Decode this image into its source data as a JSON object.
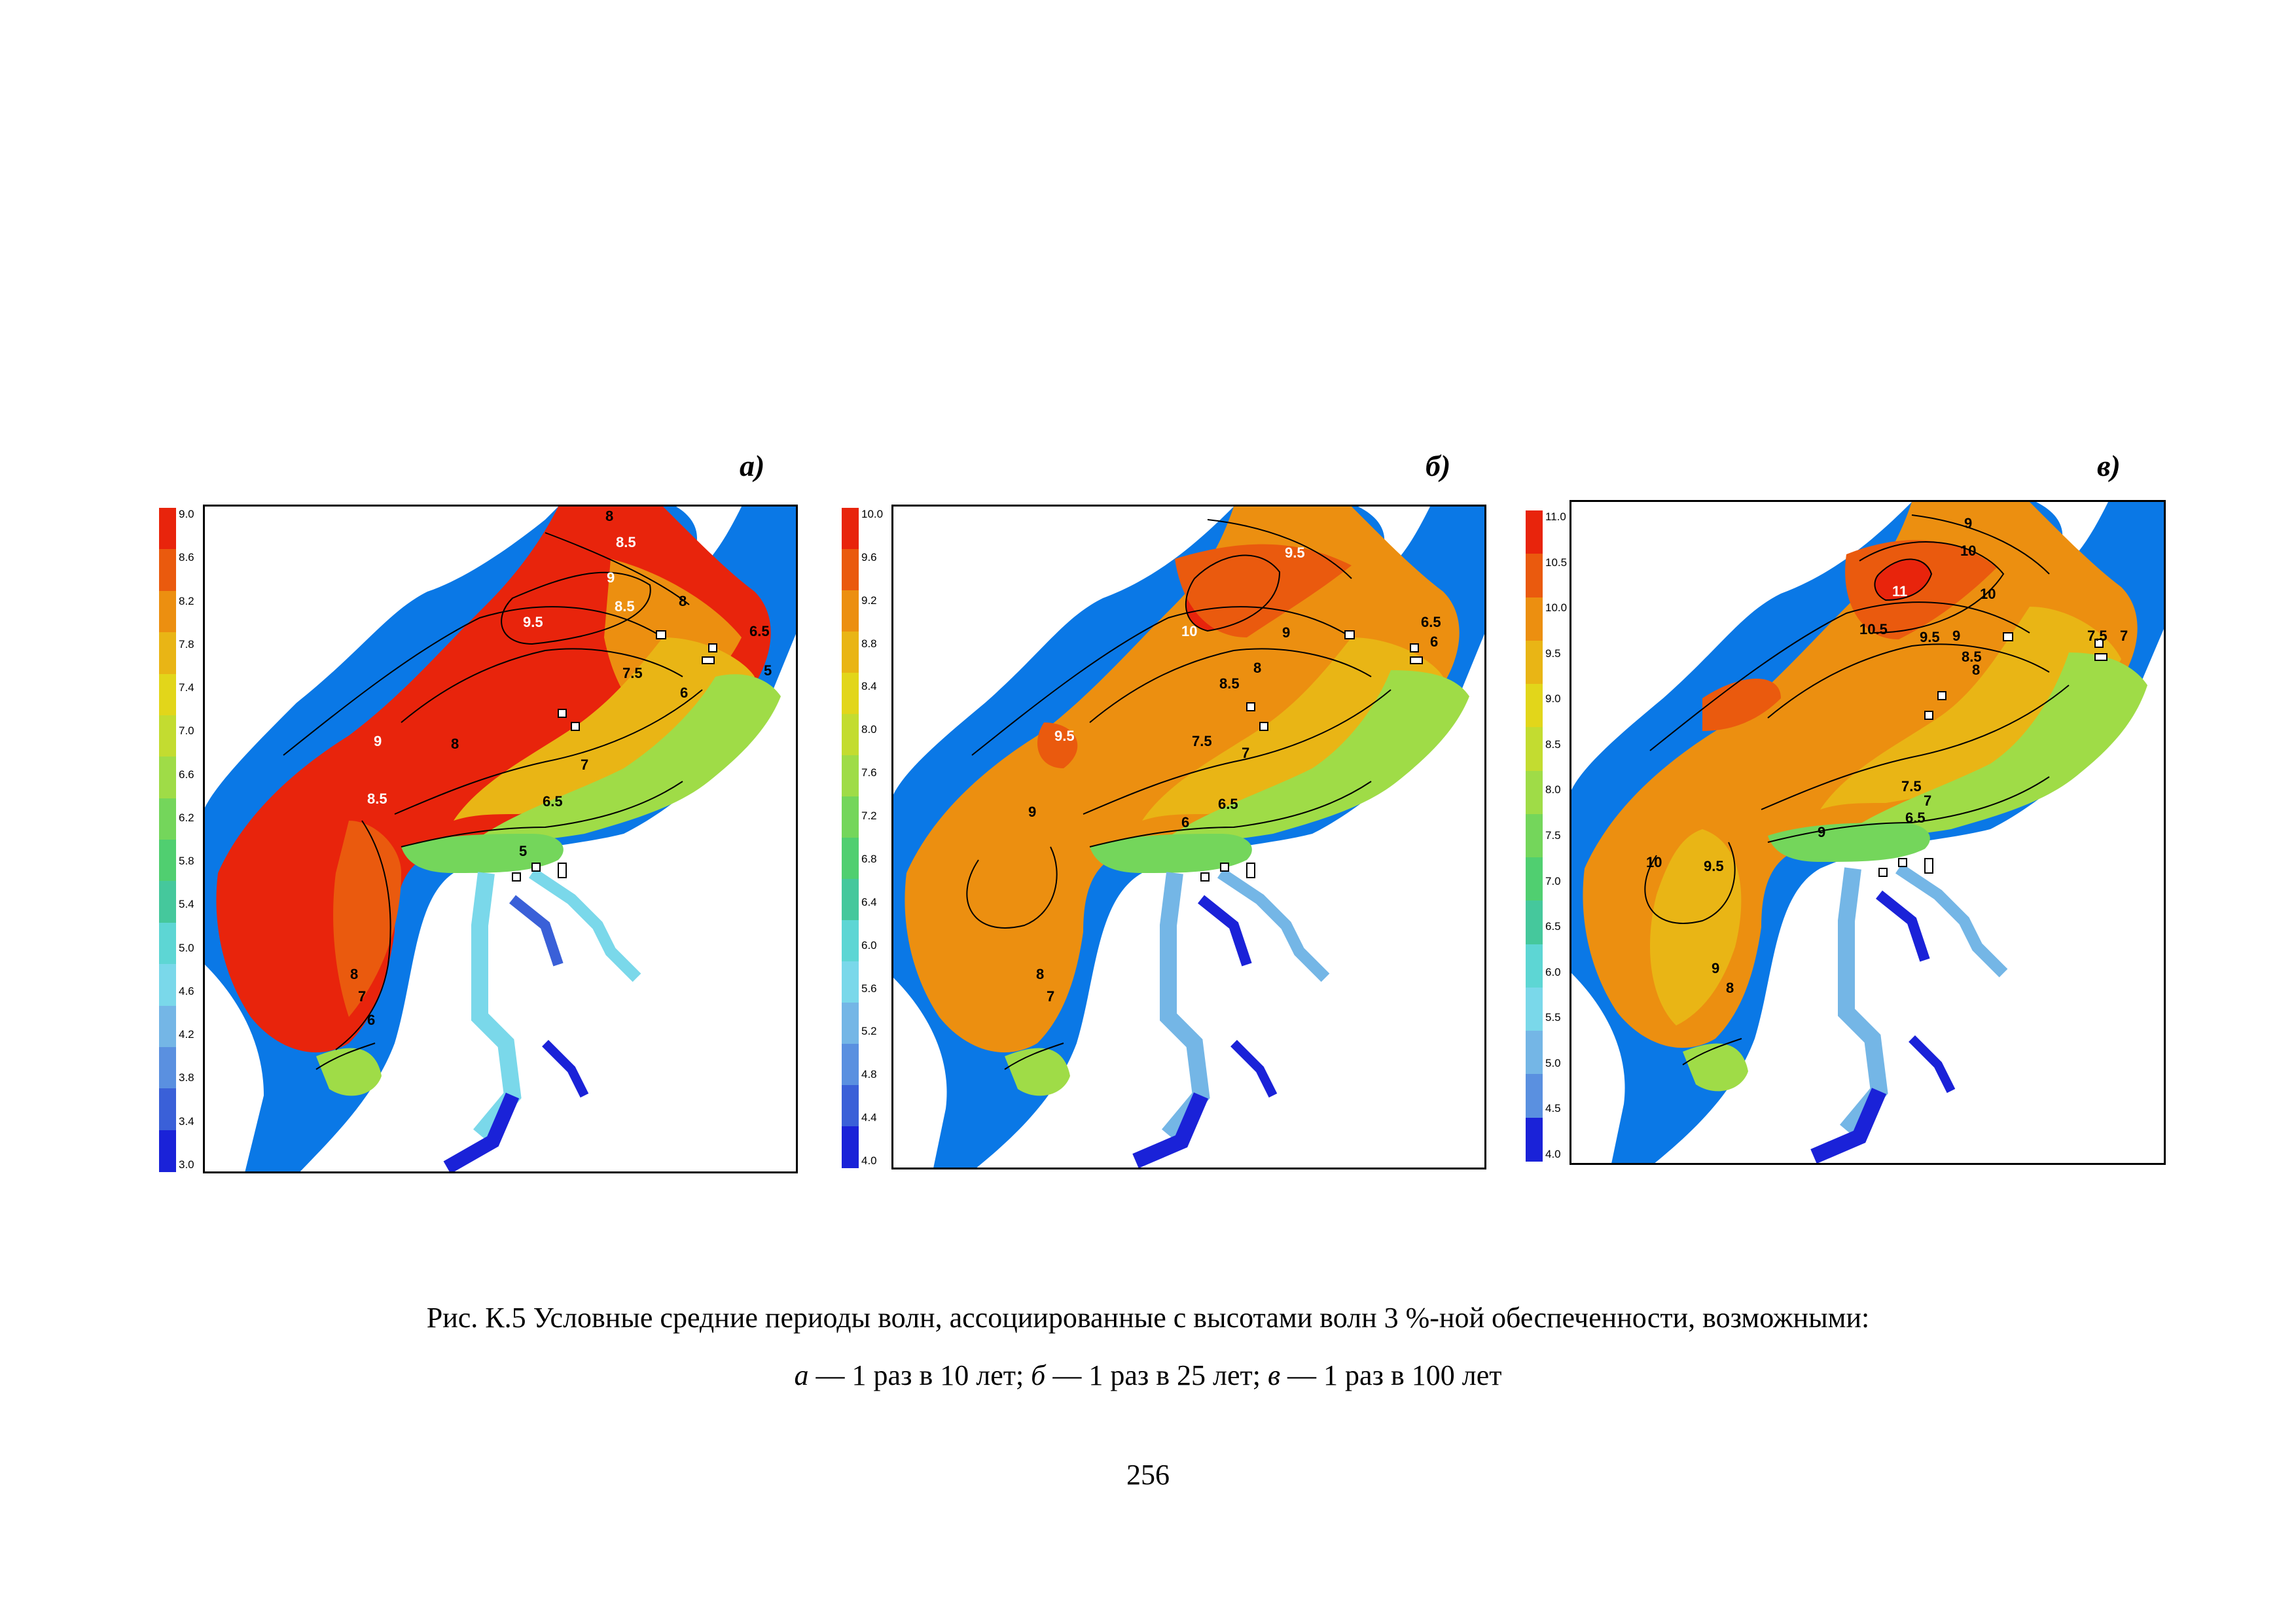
{
  "figure": {
    "panels": [
      {
        "id": "a",
        "label": "а)",
        "colorbar_ticks": [
          "9.0",
          "8.6",
          "8.2",
          "7.8",
          "7.4",
          "7.0",
          "6.6",
          "6.2",
          "5.8",
          "5.4",
          "5.0",
          "4.6",
          "4.2",
          "3.8",
          "3.4",
          "3.0"
        ],
        "colorbar_colors": [
          "#e8240c",
          "#ea5a0e",
          "#ec8f10",
          "#e9b515",
          "#e2d61a",
          "#c3dc30",
          "#9fdc47",
          "#74d65b",
          "#50cf70",
          "#45c89c",
          "#5dd6d4",
          "#7ad8ea",
          "#74b6e6",
          "#5a90e0",
          "#3a60d8",
          "#1a22d8"
        ],
        "contour_labels": [
          "8",
          "8.5",
          "9",
          "9.5",
          "8.5",
          "8",
          "7.5",
          "6.5",
          "6",
          "5",
          "9",
          "8",
          "8.5",
          "7",
          "6.5",
          "5",
          "8",
          "7",
          "6"
        ]
      },
      {
        "id": "b",
        "label": "б)",
        "colorbar_ticks": [
          "10.0",
          "9.6",
          "9.2",
          "8.8",
          "8.4",
          "8.0",
          "7.6",
          "7.2",
          "6.8",
          "6.4",
          "6.0",
          "5.6",
          "5.2",
          "4.8",
          "4.4",
          "4.0"
        ],
        "colorbar_colors": [
          "#e8240c",
          "#ea5a0e",
          "#ec8f10",
          "#e9b515",
          "#e2d61a",
          "#c3dc30",
          "#9fdc47",
          "#74d65b",
          "#50cf70",
          "#45c89c",
          "#5dd6d4",
          "#7ad8ea",
          "#74b6e6",
          "#5a90e0",
          "#3a60d8",
          "#1a22d8"
        ],
        "contour_labels": [
          "9.5",
          "10",
          "9",
          "6.5",
          "6",
          "9.5",
          "8.5",
          "8",
          "7.5",
          "7",
          "6.5",
          "6",
          "9",
          "8",
          "7"
        ]
      },
      {
        "id": "v",
        "label": "в)",
        "colorbar_ticks": [
          "11.0",
          "10.5",
          "10.0",
          "9.5",
          "9.0",
          "8.5",
          "8.0",
          "7.5",
          "7.0",
          "6.5",
          "6.0",
          "5.5",
          "5.0",
          "4.5",
          "4.0"
        ],
        "colorbar_colors": [
          "#e8240c",
          "#ea5a0e",
          "#ec8f10",
          "#e9b515",
          "#e2d61a",
          "#c3dc30",
          "#9fdc47",
          "#74d65b",
          "#50cf70",
          "#45c89c",
          "#5dd6d4",
          "#7ad8ea",
          "#74b6e6",
          "#5a90e0",
          "#1a22d8"
        ],
        "contour_labels": [
          "9",
          "10",
          "11",
          "10",
          "10.5",
          "9.5",
          "9",
          "8.5",
          "8",
          "7.5",
          "7",
          "7.5",
          "7",
          "6.5",
          "9",
          "10",
          "9.5",
          "9",
          "8"
        ]
      }
    ],
    "caption_line1": "Рис. К.5 Условные средние периоды волн, ассоциированные с высотами волн 3 %-ной обеспеченности, возможными:",
    "caption_line2": {
      "a_letter": "а",
      "a_text": " — 1 раз в 10 лет;  ",
      "b_letter": "б",
      "b_text": " — 1 раз в 25 лет; ",
      "v_letter": "в",
      "v_text": " — 1 раз в 100 лет"
    },
    "page_number": "256"
  }
}
